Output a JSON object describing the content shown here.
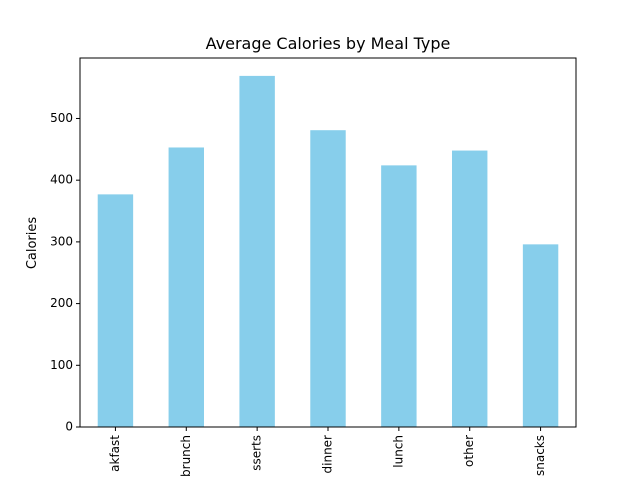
{
  "chart_data": {
    "type": "bar",
    "title": "Average Calories by Meal Type",
    "xlabel": "",
    "ylabel": "Calories",
    "categories": [
      "breakfast",
      "brunch",
      "desserts",
      "dinner",
      "lunch",
      "other",
      "snacks"
    ],
    "categories_visible": [
      "akfast",
      "brunch",
      "sserts",
      "dinner",
      "lunch",
      "other",
      "snacks"
    ],
    "values": [
      377,
      453,
      569,
      481,
      424,
      448,
      296
    ],
    "ylim": [
      0,
      598
    ],
    "yticks": [
      0,
      100,
      200,
      300,
      400,
      500
    ],
    "grid": false,
    "legend": "none",
    "bar_color": "#87CEEB",
    "xtick_rotation": "vertical"
  }
}
